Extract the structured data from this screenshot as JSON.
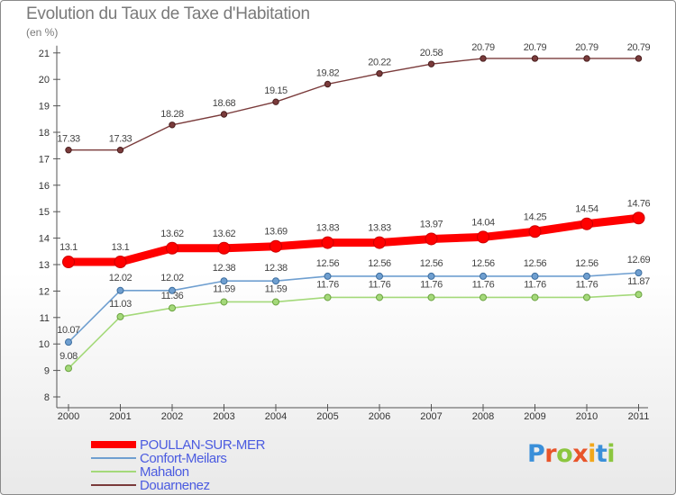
{
  "title": "Evolution du Taux de Taxe d'Habitation",
  "unit_label": "(en %)",
  "brand": {
    "name": "Proxiti",
    "letter_colors": [
      "#3a8fd9",
      "#e8542a",
      "#8cc63f",
      "#e8542a",
      "#f2a71b",
      "#3a8fd9",
      "#8cc63f"
    ]
  },
  "chart_data": {
    "type": "line",
    "title": "Evolution du Taux de Taxe d'Habitation",
    "ylabel": "(en %)",
    "xlabel": "",
    "x": [
      "2000",
      "2001",
      "2002",
      "2003",
      "2004",
      "2005",
      "2006",
      "2007",
      "2008",
      "2009",
      "2010",
      "2011"
    ],
    "ylim": [
      8,
      21
    ],
    "yticks": [
      "8",
      "9",
      "10",
      "11",
      "12",
      "13",
      "14",
      "15",
      "16",
      "17",
      "18",
      "19",
      "20",
      "21"
    ],
    "grid": false,
    "legend": "bottom-left",
    "series": [
      {
        "name": "POULLAN-SUR-MER",
        "color": "#ff0000",
        "values": [
          13.1,
          13.1,
          13.62,
          13.62,
          13.69,
          13.83,
          13.83,
          13.97,
          14.04,
          14.25,
          14.54,
          14.76
        ],
        "labels": [
          "13.1",
          "13.1",
          "13.62",
          "13.62",
          "13.69",
          "13.83",
          "13.83",
          "13.97",
          "14.04",
          "14.25",
          "14.54",
          "14.76"
        ]
      },
      {
        "name": "Confort-Meilars",
        "color": "#6f9fd0",
        "values": [
          10.07,
          12.02,
          12.02,
          12.38,
          12.38,
          12.56,
          12.56,
          12.56,
          12.56,
          12.56,
          12.56,
          12.69
        ],
        "labels": [
          "10.07",
          "12.02",
          "12.02",
          "12.38",
          "12.38",
          "12.56",
          "12.56",
          "12.56",
          "12.56",
          "12.56",
          "12.56",
          "12.69"
        ]
      },
      {
        "name": "Mahalon",
        "color": "#a4d97a",
        "values": [
          9.08,
          11.03,
          11.36,
          11.59,
          11.59,
          11.76,
          11.76,
          11.76,
          11.76,
          11.76,
          11.76,
          11.87
        ],
        "labels": [
          "9.08",
          "11.03",
          "11.36",
          "11.59",
          "11.59",
          "11.76",
          "11.76",
          "11.76",
          "11.76",
          "11.76",
          "11.76",
          "11.87"
        ]
      },
      {
        "name": "Douarnenez",
        "color": "#7a3b3b",
        "values": [
          17.33,
          17.33,
          18.28,
          18.68,
          19.15,
          19.82,
          20.22,
          20.58,
          20.79,
          20.79,
          20.79,
          20.79
        ],
        "labels": [
          "17.33",
          "17.33",
          "18.28",
          "18.68",
          "19.15",
          "19.82",
          "20.22",
          "20.58",
          "20.79",
          "20.79",
          "20.79",
          "20.79"
        ]
      }
    ]
  }
}
